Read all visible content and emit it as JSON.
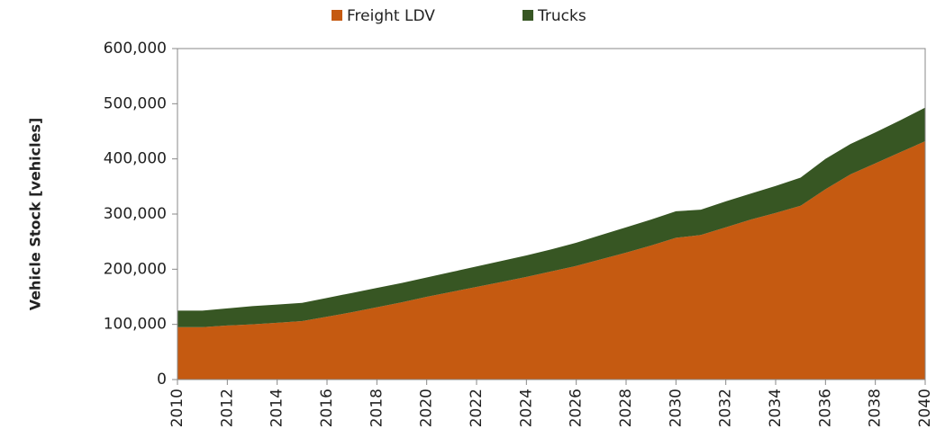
{
  "chart_data": {
    "type": "stacked_area",
    "y_label": "Vehicle Stock [vehicles]",
    "x": [
      2010,
      2011,
      2012,
      2013,
      2014,
      2015,
      2016,
      2017,
      2018,
      2019,
      2020,
      2021,
      2022,
      2023,
      2024,
      2025,
      2026,
      2027,
      2028,
      2029,
      2030,
      2031,
      2032,
      2033,
      2034,
      2035,
      2036,
      2037,
      2038,
      2039,
      2040
    ],
    "xlim": [
      2010,
      2040
    ],
    "xticks": [
      2010,
      2012,
      2014,
      2016,
      2018,
      2020,
      2022,
      2024,
      2026,
      2028,
      2030,
      2032,
      2034,
      2036,
      2038,
      2040
    ],
    "ylim": [
      0,
      600000
    ],
    "yticks": [
      0,
      {
        "value": 100000,
        "label": "100,000"
      },
      {
        "value": 200000,
        "label": "200,000"
      },
      {
        "value": 300000,
        "label": "300,000"
      },
      {
        "value": 400000,
        "label": "400,000"
      },
      {
        "value": 500000,
        "label": "500,000"
      },
      {
        "value": 600000,
        "label": "600,000"
      }
    ],
    "legend": "top",
    "series": [
      {
        "name": "Freight LDV",
        "color": "#c55a11",
        "values": [
          95000,
          95000,
          98000,
          100000,
          103000,
          106000,
          114000,
          122000,
          131000,
          140000,
          150000,
          159000,
          168000,
          177000,
          186000,
          196000,
          206000,
          218000,
          230000,
          243000,
          257000,
          262000,
          276000,
          290000,
          302000,
          315000,
          345000,
          372000,
          392000,
          412000,
          432000
        ]
      },
      {
        "name": "Trucks",
        "color": "#375623",
        "values": [
          30000,
          30000,
          31000,
          33000,
          33000,
          33000,
          34000,
          35000,
          35000,
          35000,
          35000,
          36000,
          37000,
          38000,
          39000,
          40000,
          42000,
          44000,
          46000,
          47000,
          48000,
          46000,
          47000,
          47000,
          49000,
          51000,
          55000,
          55000,
          56000,
          58000,
          61000
        ]
      }
    ]
  }
}
